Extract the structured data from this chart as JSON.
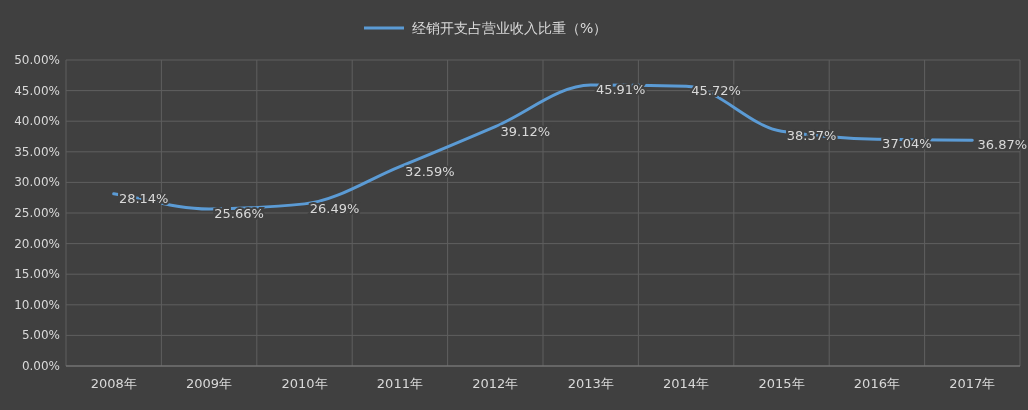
{
  "chart_data": {
    "type": "line",
    "categories": [
      "2008年",
      "2009年",
      "2010年",
      "2011年",
      "2012年",
      "2013年",
      "2014年",
      "2015年",
      "2016年",
      "2017年"
    ],
    "series": [
      {
        "name": "经销开支占营业收入比重（%）",
        "color": "#5b9bd5",
        "values": [
          28.14,
          25.66,
          26.49,
          32.59,
          39.12,
          45.91,
          45.72,
          38.37,
          37.04,
          36.87
        ],
        "value_labels": [
          "28.14%",
          "25.66%",
          "26.49%",
          "32.59%",
          "39.12%",
          "45.91%",
          "45.72%",
          "38.37%",
          "37.04%",
          "36.87%"
        ]
      }
    ],
    "ylim": [
      0,
      50
    ],
    "yticks": [
      {
        "value": 0,
        "label": "0.00%"
      },
      {
        "value": 5,
        "label": "5.00%"
      },
      {
        "value": 10,
        "label": "10.00%"
      },
      {
        "value": 15,
        "label": "15.00%"
      },
      {
        "value": 20,
        "label": "20.00%"
      },
      {
        "value": 25,
        "label": "25.00%"
      },
      {
        "value": 30,
        "label": "30.00%"
      },
      {
        "value": 35,
        "label": "35.00%"
      },
      {
        "value": 40,
        "label": "40.00%"
      },
      {
        "value": 45,
        "label": "45.00%"
      },
      {
        "value": 50,
        "label": "50.00%"
      }
    ],
    "grid": true,
    "legend": "top",
    "marker": "none",
    "line_style": "solid"
  }
}
